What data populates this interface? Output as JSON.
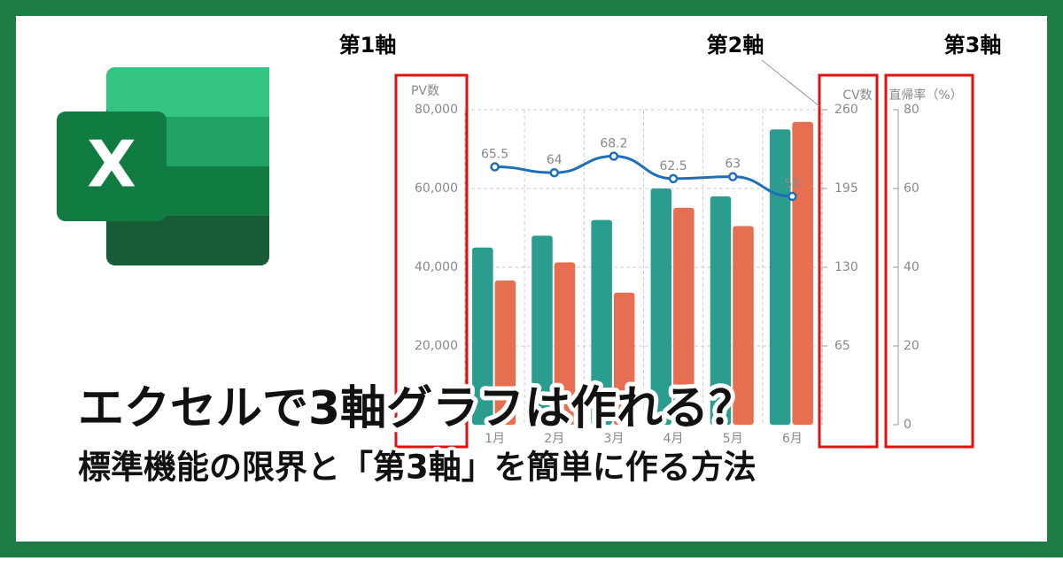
{
  "axis_labels": [
    "第1軸",
    "第2軸",
    "第3軸"
  ],
  "headline": "エクセルで3軸グラフは作れる？",
  "subheadline": "標準機能の限界と「第3軸」を簡単に作る方法",
  "chart_data": {
    "type": "bar",
    "categories": [
      "1月",
      "2月",
      "3月",
      "4月",
      "5月",
      "6月"
    ],
    "y_label": "PV数",
    "y2_label": "CV数",
    "y3_label": "直帰率（%）",
    "ylim": [
      0,
      80000
    ],
    "yticks": [
      {
        "value": 20000,
        "label": "20,000"
      },
      {
        "value": 40000,
        "label": "40,000"
      },
      {
        "value": 60000,
        "label": "60,000"
      },
      {
        "value": 80000,
        "label": "80,000"
      }
    ],
    "y2lim": [
      0,
      260
    ],
    "y2ticks": [
      65,
      130,
      195,
      260
    ],
    "y3lim": [
      0,
      80
    ],
    "y3ticks": [
      0,
      20,
      40,
      60,
      80
    ],
    "grid": true,
    "series": [
      {
        "type": "bar",
        "color": "#2a9d8f",
        "values": [
          45000,
          48000,
          52000,
          60000,
          58000,
          75000
        ]
      },
      {
        "type": "bar",
        "axis": "y2",
        "color": "#e76f51",
        "values": [
          119,
          134,
          109,
          179,
          164,
          250
        ]
      },
      {
        "type": "line",
        "axis": "y3",
        "color": "#1f6fb8",
        "values": [
          65.5,
          64,
          68.2,
          62.5,
          63,
          58
        ]
      }
    ]
  }
}
